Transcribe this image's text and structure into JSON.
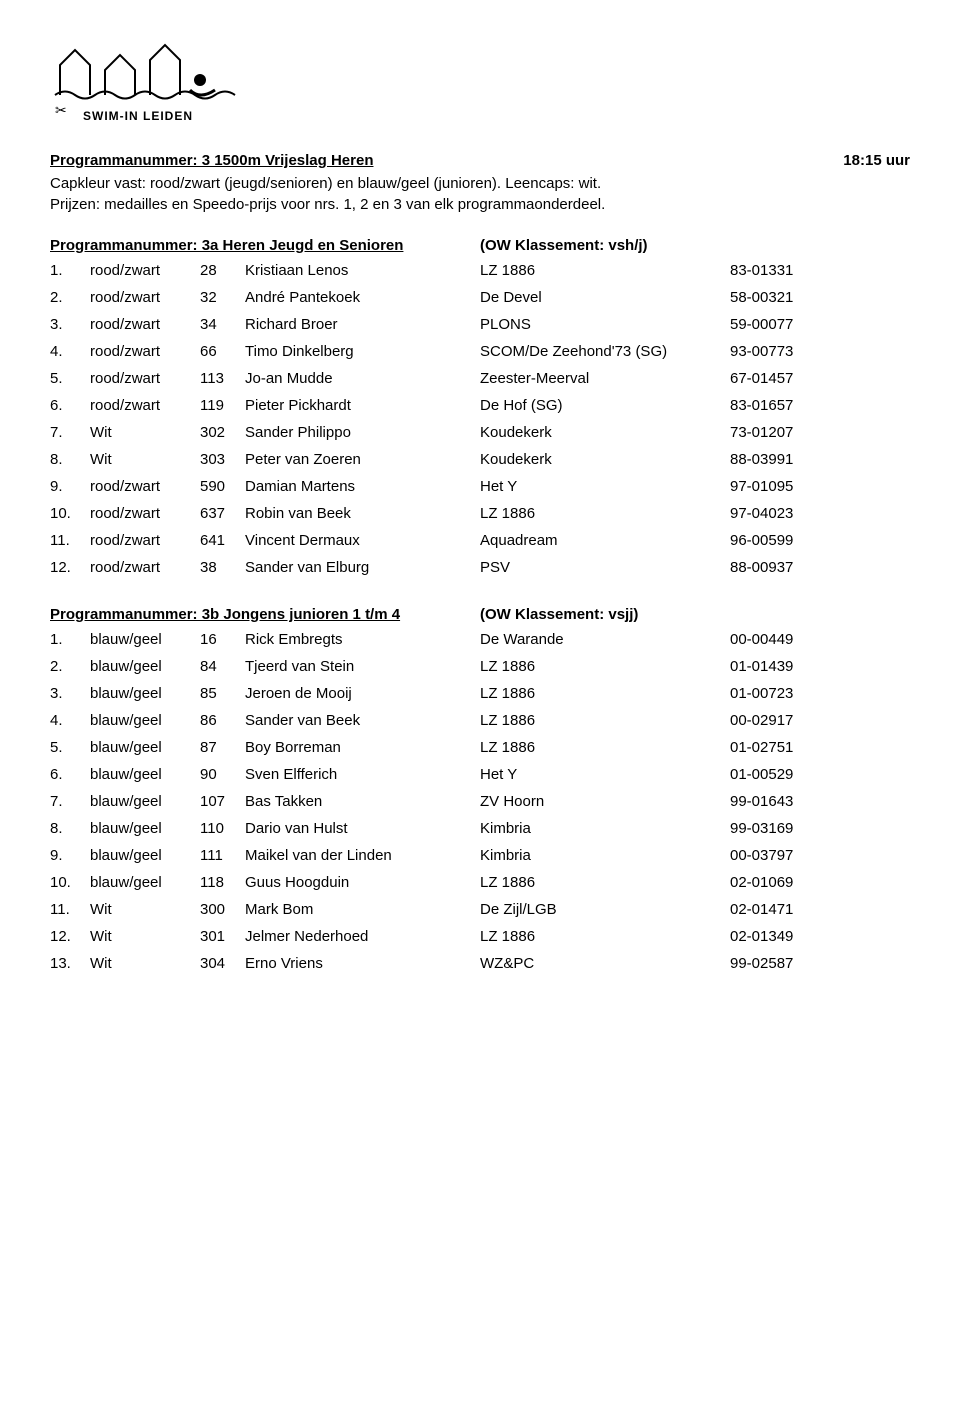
{
  "header": {
    "title": "Programmanummer: 3  1500m Vrijeslag  Heren",
    "time": "18:15 uur",
    "info1": "Capkleur vast: rood/zwart (jeugd/senioren) en blauw/geel (junioren). Leencaps: wit.",
    "info2": "Prijzen: medailles en Speedo-prijs voor nrs. 1, 2 en 3 van elk programmaonderdeel."
  },
  "sectionA": {
    "title": "Programmanummer: 3a  Heren Jeugd en Senioren",
    "classification": "(OW Klassement: vsh/j)",
    "rows": [
      {
        "rank": "1.",
        "cap": "rood/zwart",
        "num": "28",
        "name": "Kristiaan Lenos",
        "club": "LZ 1886",
        "code": "83-01331"
      },
      {
        "rank": "2.",
        "cap": "rood/zwart",
        "num": "32",
        "name": "André Pantekoek",
        "club": "De Devel",
        "code": "58-00321"
      },
      {
        "rank": "3.",
        "cap": "rood/zwart",
        "num": "34",
        "name": "Richard Broer",
        "club": "PLONS",
        "code": "59-00077"
      },
      {
        "rank": "4.",
        "cap": "rood/zwart",
        "num": "66",
        "name": "Timo Dinkelberg",
        "club": "SCOM/De Zeehond'73 (SG)",
        "code": "93-00773"
      },
      {
        "rank": "5.",
        "cap": "rood/zwart",
        "num": "113",
        "name": "Jo-an Mudde",
        "club": "Zeester-Meerval",
        "code": "67-01457"
      },
      {
        "rank": "6.",
        "cap": "rood/zwart",
        "num": "119",
        "name": "Pieter Pickhardt",
        "club": "De Hof (SG)",
        "code": "83-01657"
      },
      {
        "rank": "7.",
        "cap": "Wit",
        "num": "302",
        "name": "Sander Philippo",
        "club": "Koudekerk",
        "code": "73-01207"
      },
      {
        "rank": "8.",
        "cap": "Wit",
        "num": "303",
        "name": "Peter van Zoeren",
        "club": "Koudekerk",
        "code": "88-03991"
      },
      {
        "rank": "9.",
        "cap": "rood/zwart",
        "num": "590",
        "name": "Damian Martens",
        "club": "Het Y",
        "code": "97-01095"
      },
      {
        "rank": "10.",
        "cap": "rood/zwart",
        "num": "637",
        "name": "Robin van Beek",
        "club": "LZ 1886",
        "code": "97-04023"
      },
      {
        "rank": "11.",
        "cap": "rood/zwart",
        "num": "641",
        "name": "Vincent Dermaux",
        "club": "Aquadream",
        "code": "96-00599"
      },
      {
        "rank": "12.",
        "cap": "rood/zwart",
        "num": "38",
        "name": "Sander van Elburg",
        "club": "PSV",
        "code": "88-00937"
      }
    ]
  },
  "sectionB": {
    "title": "Programmanummer: 3b  Jongens junioren 1 t/m 4",
    "classification": "(OW Klassement: vsjj)",
    "rows": [
      {
        "rank": "1.",
        "cap": "blauw/geel",
        "num": "16",
        "name": "Rick Embregts",
        "club": "De Warande",
        "code": "00-00449"
      },
      {
        "rank": "2.",
        "cap": "blauw/geel",
        "num": "84",
        "name": "Tjeerd van Stein",
        "club": "LZ 1886",
        "code": "01-01439"
      },
      {
        "rank": "3.",
        "cap": "blauw/geel",
        "num": "85",
        "name": "Jeroen de Mooij",
        "club": "LZ 1886",
        "code": "01-00723"
      },
      {
        "rank": "4.",
        "cap": "blauw/geel",
        "num": "86",
        "name": "Sander van Beek",
        "club": "LZ 1886",
        "code": "00-02917"
      },
      {
        "rank": "5.",
        "cap": "blauw/geel",
        "num": "87",
        "name": "Boy Borreman",
        "club": "LZ 1886",
        "code": "01-02751"
      },
      {
        "rank": "6.",
        "cap": "blauw/geel",
        "num": "90",
        "name": "Sven Elfferich",
        "club": "Het Y",
        "code": "01-00529"
      },
      {
        "rank": "7.",
        "cap": "blauw/geel",
        "num": "107",
        "name": "Bas Takken",
        "club": "ZV Hoorn",
        "code": "99-01643"
      },
      {
        "rank": "8.",
        "cap": "blauw/geel",
        "num": "110",
        "name": "Dario van Hulst",
        "club": "Kimbria",
        "code": "99-03169"
      },
      {
        "rank": "9.",
        "cap": "blauw/geel",
        "num": "111",
        "name": "Maikel van der Linden",
        "club": "Kimbria",
        "code": "00-03797"
      },
      {
        "rank": "10.",
        "cap": "blauw/geel",
        "num": "118",
        "name": "Guus Hoogduin",
        "club": "LZ 1886",
        "code": "02-01069"
      },
      {
        "rank": "11.",
        "cap": "Wit",
        "num": "300",
        "name": "Mark Bom",
        "club": "De Zijl/LGB",
        "code": "02-01471"
      },
      {
        "rank": "12.",
        "cap": "Wit",
        "num": "301",
        "name": "Jelmer Nederhoed",
        "club": "LZ 1886",
        "code": "02-01349"
      },
      {
        "rank": "13.",
        "cap": "Wit",
        "num": "304",
        "name": "Erno Vriens",
        "club": "WZ&PC",
        "code": "99-02587"
      }
    ]
  }
}
